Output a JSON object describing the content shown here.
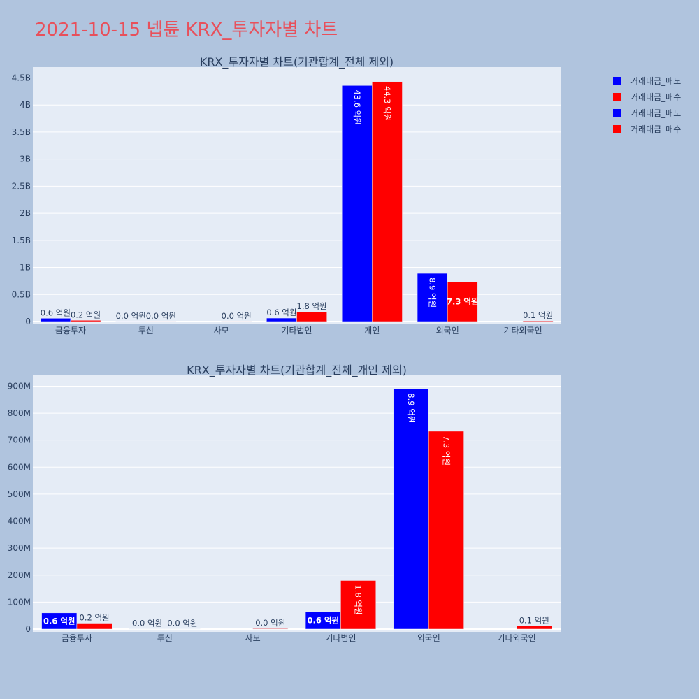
{
  "title": "2021-10-15 넵튠 KRX_투자자별 차트",
  "legend": [
    {
      "label": "거래대금_매도",
      "color": "#0000ff"
    },
    {
      "label": "거래대금_매수",
      "color": "#ff0000"
    },
    {
      "label": "거래대금_매도",
      "color": "#0000ff"
    },
    {
      "label": "거래대금_매수",
      "color": "#ff0000"
    }
  ],
  "chart_data": [
    {
      "type": "bar",
      "title": "KRX_투자자별 차트(기관합계_전체 제외)",
      "categories": [
        "금융투자",
        "투신",
        "사모",
        "기타법인",
        "개인",
        "외국인",
        "기타외국인"
      ],
      "series": [
        {
          "name": "거래대금_매도",
          "color": "#0000ff",
          "values": [
            60000000,
            1000000,
            0,
            64000000,
            4360000000,
            890000000,
            0
          ],
          "labels": [
            "0.6 억원",
            "0.0 억원",
            "",
            "0.6 억원",
            "43.6 억원",
            "8.9 억원",
            ""
          ]
        },
        {
          "name": "거래대금_매수",
          "color": "#ff0000",
          "values": [
            22000000,
            1000000,
            2000000,
            180000000,
            4430000000,
            733000000,
            12000000
          ],
          "labels": [
            "0.2 억원",
            "0.0 억원",
            "0.0 억원",
            "1.8 억원",
            "44.3 억원",
            "7.3 억원",
            "0.1 억원"
          ]
        }
      ],
      "yticks": [
        0,
        500000000,
        1000000000,
        1500000000,
        2000000000,
        2500000000,
        3000000000,
        3500000000,
        4000000000,
        4500000000
      ],
      "ytick_labels": [
        "0",
        "0.5B",
        "1B",
        "1.5B",
        "2B",
        "2.5B",
        "3B",
        "3.5B",
        "4B",
        "4.5B"
      ],
      "ylim": [
        0,
        4700000000
      ],
      "grid": true
    },
    {
      "type": "bar",
      "title": "KRX_투자자별 차트(기관합계_전체_개인 제외)",
      "categories": [
        "금융투자",
        "투신",
        "사모",
        "기타법인",
        "외국인",
        "기타외국인"
      ],
      "series": [
        {
          "name": "거래대금_매도",
          "color": "#0000ff",
          "values": [
            60000000,
            1000000,
            0,
            64000000,
            890000000,
            0
          ],
          "labels": [
            "0.6 억원",
            "0.0 억원",
            "",
            "0.6 억원",
            "8.9 억원",
            ""
          ]
        },
        {
          "name": "거래대금_매수",
          "color": "#ff0000",
          "values": [
            22000000,
            1000000,
            2000000,
            180000000,
            733000000,
            12000000
          ],
          "labels": [
            "0.2 억원",
            "0.0 억원",
            "0.0 억원",
            "1.8 억원",
            "7.3 억원",
            "0.1 억원"
          ]
        }
      ],
      "yticks": [
        0,
        100000000,
        200000000,
        300000000,
        400000000,
        500000000,
        600000000,
        700000000,
        800000000,
        900000000
      ],
      "ytick_labels": [
        "0",
        "100M",
        "200M",
        "300M",
        "400M",
        "500M",
        "600M",
        "700M",
        "800M",
        "900M"
      ],
      "ylim": [
        0,
        940000000
      ],
      "grid": true
    }
  ]
}
